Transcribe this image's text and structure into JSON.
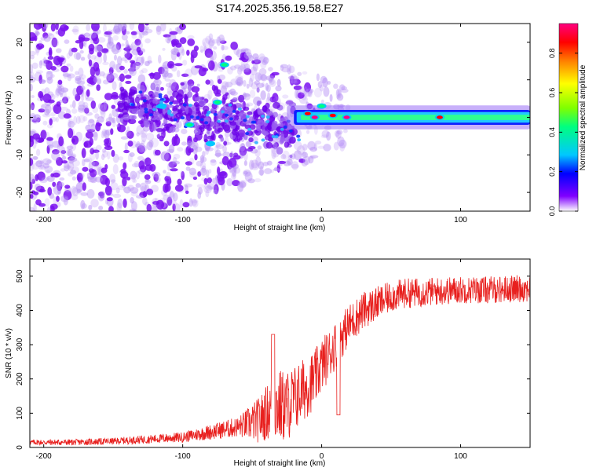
{
  "title": "S174.2025.356.19.58.E27",
  "colors": {
    "background": "#ffffff",
    "axis": "#000000",
    "snr_line": "#e8201e",
    "colormap": [
      "#ffffff",
      "#8000ff",
      "#0000ff",
      "#00c8ff",
      "#00ff80",
      "#80ff00",
      "#ffff00",
      "#ff8000",
      "#ff0000",
      "#ff0080"
    ]
  },
  "chart_data": [
    {
      "type": "heatmap",
      "name": "spectrogram",
      "xlabel": "Height of straight line (km)",
      "ylabel": "Frequency (Hz)",
      "xlim": [
        -210,
        150
      ],
      "ylim": [
        -25,
        25
      ],
      "xticks": [
        -200,
        -100,
        0,
        100
      ],
      "yticks": [
        -20,
        -10,
        0,
        10,
        20
      ],
      "xtick_labels": [
        "-200",
        "-100",
        "0",
        "100"
      ],
      "ytick_labels": [
        "-20",
        "-10",
        "0",
        "10",
        "20"
      ],
      "value_range": [
        0,
        0.95
      ],
      "colorbar": {
        "label": "Normalized spectral amplitude",
        "ticks": [
          0.0,
          0.2,
          0.4,
          0.6,
          0.8
        ],
        "tick_labels": [
          "0.0",
          "0.2",
          "0.4",
          "0.6",
          "0.8"
        ]
      },
      "features": {
        "noise_region_x": [
          -210,
          -20
        ],
        "noise_spread_hz": 25,
        "streak_x": [
          -85,
          150
        ],
        "streak_center_hz": 0,
        "streak_halfwidth_hz": 2,
        "streak_amplitude": 0.45,
        "peaks": [
          {
            "x": 0,
            "y": 3,
            "value": 0.3
          },
          {
            "x": -10,
            "y": 1,
            "value": 0.85
          },
          {
            "x": -5,
            "y": 0,
            "value": 0.9
          },
          {
            "x": 8,
            "y": 0.5,
            "value": 0.85
          },
          {
            "x": 18,
            "y": 0,
            "value": 0.95
          },
          {
            "x": 85,
            "y": 0,
            "value": 0.85
          },
          {
            "x": -75,
            "y": 4,
            "value": 0.3
          },
          {
            "x": -95,
            "y": -2,
            "value": 0.3
          },
          {
            "x": -115,
            "y": 3,
            "value": 0.25
          },
          {
            "x": -70,
            "y": 14,
            "value": 0.3
          },
          {
            "x": -80,
            "y": -7,
            "value": 0.25
          }
        ]
      }
    },
    {
      "type": "line",
      "name": "snr",
      "xlabel": "Height of straight line (km)",
      "ylabel": "SNR (10 * v/v)",
      "xlim": [
        -210,
        150
      ],
      "ylim": [
        0,
        550
      ],
      "xticks": [
        -200,
        -100,
        0,
        100
      ],
      "yticks": [
        0,
        100,
        200,
        300,
        400,
        500
      ],
      "xtick_labels": [
        "-200",
        "-100",
        "0",
        "100"
      ],
      "ytick_labels": [
        "0",
        "100",
        "200",
        "300",
        "400",
        "500"
      ],
      "trend": {
        "x": [
          -210,
          -180,
          -150,
          -120,
          -100,
          -80,
          -60,
          -45,
          -35,
          -25,
          -15,
          -5,
          0,
          5,
          10,
          15,
          20,
          25,
          30,
          40,
          50,
          60,
          80,
          100,
          120,
          150
        ],
        "y": [
          15,
          15,
          18,
          25,
          30,
          45,
          60,
          80,
          120,
          120,
          160,
          200,
          240,
          270,
          300,
          330,
          360,
          380,
          400,
          420,
          440,
          450,
          455,
          460,
          460,
          465
        ]
      },
      "noise_amplitude": {
        "x": [
          -210,
          -150,
          -100,
          -60,
          -40,
          -30,
          -20,
          0,
          20,
          50,
          100,
          150
        ],
        "y": [
          8,
          10,
          15,
          30,
          80,
          110,
          100,
          80,
          60,
          45,
          40,
          40
        ]
      },
      "annotations": [
        {
          "x": 12,
          "y": 95,
          "note": "dip"
        },
        {
          "x": -35,
          "y": 330,
          "note": "spike"
        }
      ]
    }
  ]
}
